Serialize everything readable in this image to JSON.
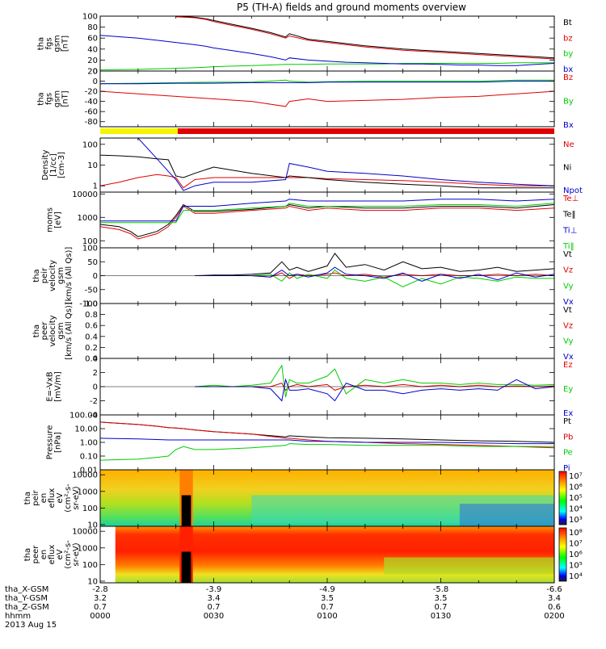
{
  "title": "P5 (TH-A) fields and ground moments overview",
  "footer": {
    "rows": [
      {
        "label": "tha_X-GSM",
        "values": [
          "-2.8",
          "-3.9",
          "-4.9",
          "-5.8",
          "-6.6"
        ]
      },
      {
        "label": "tha_Y-GSM",
        "values": [
          "3.2",
          "3.4",
          "3.5",
          "3.5",
          "3.4"
        ]
      },
      {
        "label": "tha_Z-GSM",
        "values": [
          "0.7",
          "0.7",
          "0.7",
          "0.7",
          "0.6"
        ]
      },
      {
        "label": "hhmm",
        "values": [
          "0000",
          "0030",
          "0100",
          "0130",
          "0200"
        ]
      }
    ],
    "date": "2013 Aug 15"
  },
  "colors": {
    "black": "#000000",
    "red": "#e00000",
    "green": "#00cc00",
    "blue": "#0000cc",
    "yellow": "#f5f500"
  },
  "chart_data": [
    {
      "type": "line",
      "ylabel_lines": [
        "tha",
        "fgs",
        "gsm",
        "[nT]"
      ],
      "ylim": [
        0,
        100
      ],
      "yticks": [
        "0",
        "20",
        "40",
        "60",
        "80",
        "100"
      ],
      "x": [
        0,
        10,
        15,
        20,
        25,
        28,
        30,
        35,
        40,
        45,
        49,
        50,
        55,
        60,
        65,
        70,
        75,
        80,
        85,
        90,
        95,
        100,
        105,
        110,
        115,
        120
      ],
      "series": [
        {
          "name": "Bt",
          "color": "#000000",
          "values": [
            null,
            null,
            null,
            100,
            98,
            95,
            92,
            85,
            78,
            70,
            62,
            68,
            58,
            54,
            50,
            46,
            43,
            40,
            38,
            36,
            34,
            32,
            30,
            28,
            26,
            24
          ]
        },
        {
          "name": "bz",
          "color": "#e00000",
          "values": [
            null,
            null,
            null,
            99,
            97,
            94,
            90,
            83,
            76,
            68,
            60,
            64,
            56,
            52,
            48,
            44,
            41,
            38,
            36,
            34,
            32,
            30,
            28,
            26,
            24,
            22
          ]
        },
        {
          "name": "by",
          "color": "#00cc00",
          "values": [
            2,
            3,
            4,
            5,
            6,
            7,
            8,
            9,
            10,
            11,
            12,
            12,
            12,
            13,
            13,
            13,
            13,
            14,
            14,
            14,
            14,
            14,
            14,
            15,
            15,
            15
          ]
        },
        {
          "name": "bx",
          "color": "#0000cc",
          "values": [
            65,
            60,
            56,
            52,
            48,
            45,
            42,
            37,
            32,
            26,
            20,
            24,
            20,
            18,
            16,
            15,
            14,
            13,
            13,
            12,
            11,
            11,
            10,
            10,
            12,
            14
          ]
        }
      ]
    },
    {
      "type": "line",
      "ylabel_lines": [
        "tha",
        "fgs",
        "gsm",
        "[nT]"
      ],
      "ylim": [
        -90,
        20
      ],
      "yticks": [
        "-80",
        "-60",
        "-40",
        "-20",
        "0",
        "20"
      ],
      "x": [
        0,
        10,
        20,
        30,
        40,
        49,
        50,
        55,
        60,
        70,
        80,
        90,
        100,
        110,
        120
      ],
      "series": [
        {
          "name": "Bz",
          "color": "#e00000",
          "values": [
            -20,
            -25,
            -30,
            -35,
            -40,
            -50,
            -40,
            -35,
            -40,
            -38,
            -36,
            -32,
            -30,
            -25,
            -20
          ]
        },
        {
          "name": "By",
          "color": "#00cc00",
          "values": [
            -5,
            -4,
            -3,
            -2,
            -2,
            2,
            0,
            -2,
            -1,
            0,
            0,
            0,
            0,
            2,
            2
          ]
        },
        {
          "name": "Bx",
          "color": "#0000cc",
          "values": [
            -5,
            -5,
            -4,
            -4,
            -3,
            -3,
            -3,
            -3,
            -2,
            -2,
            -2,
            -2,
            -2,
            0,
            0
          ]
        }
      ]
    },
    {
      "type": "line",
      "ylabel_lines": [
        "Density",
        "[1/cc]",
        "[cm-3]"
      ],
      "yscale": "log",
      "ylim": [
        0.5,
        200
      ],
      "yticks": [
        "1",
        "10",
        "100"
      ],
      "x": [
        0,
        5,
        10,
        15,
        18,
        20,
        22,
        25,
        30,
        40,
        49,
        50,
        55,
        60,
        70,
        80,
        90,
        100,
        110,
        120
      ],
      "series": [
        {
          "name": "Ne",
          "color": "#e00000",
          "values": [
            1,
            1.5,
            2.5,
            3.5,
            3,
            2.5,
            0.8,
            2,
            2.5,
            2.5,
            2.5,
            2.5,
            2.5,
            2.2,
            2,
            1.8,
            1.5,
            1.2,
            1,
            1
          ]
        },
        {
          "name": "Ni",
          "color": "#000000",
          "values": [
            30,
            28,
            25,
            20,
            18,
            3,
            2.5,
            4,
            8,
            4,
            2.5,
            3,
            2.5,
            2,
            1.5,
            1.2,
            1,
            0.8,
            0.8,
            0.8
          ]
        },
        {
          "name": "Npot",
          "color": "#0000cc",
          "values": [
            null,
            null,
            200,
            20,
            5,
            2,
            0.6,
            1,
            1.5,
            1.5,
            2,
            12,
            8,
            5,
            4,
            3,
            2,
            1.5,
            1.2,
            1
          ]
        }
      ]
    },
    {
      "type": "line",
      "ylabel_lines": [
        "moms",
        "[eV]"
      ],
      "yscale": "log",
      "ylim": [
        50,
        12000
      ],
      "yticks": [
        "100",
        "1000",
        "10000"
      ],
      "x": [
        0,
        5,
        8,
        10,
        15,
        18,
        20,
        22,
        25,
        30,
        40,
        49,
        50,
        55,
        60,
        70,
        80,
        90,
        100,
        110,
        120
      ],
      "series": [
        {
          "name": "Te⊥",
          "color": "#e00000",
          "values": [
            400,
            300,
            200,
            120,
            200,
            400,
            1000,
            3000,
            1500,
            1500,
            2000,
            2500,
            3000,
            2000,
            2500,
            2000,
            2000,
            2500,
            2500,
            2000,
            2500
          ]
        },
        {
          "name": "Te‖",
          "color": "#000000",
          "values": [
            500,
            400,
            250,
            150,
            250,
            500,
            1200,
            3500,
            1800,
            1800,
            2200,
            3000,
            3500,
            2500,
            3000,
            2500,
            2500,
            3000,
            3000,
            2500,
            3500
          ]
        },
        {
          "name": "Ti⊥",
          "color": "#0000cc",
          "values": [
            700,
            700,
            700,
            700,
            700,
            700,
            700,
            3000,
            3000,
            3000,
            4000,
            5000,
            6000,
            5000,
            5000,
            5000,
            5000,
            6000,
            6000,
            5000,
            6000
          ]
        },
        {
          "name": "Ti‖",
          "color": "#00cc00",
          "values": [
            600,
            600,
            600,
            600,
            600,
            600,
            600,
            2000,
            2000,
            2000,
            2500,
            3000,
            4000,
            3000,
            3000,
            3000,
            3000,
            3500,
            3500,
            3000,
            4000
          ]
        }
      ]
    },
    {
      "type": "line",
      "ylabel_lines": [
        "tha",
        "peir",
        "velocity",
        "gsm",
        "[km/s (All Qs)]"
      ],
      "ylim": [
        -100,
        100
      ],
      "yticks": [
        "-100",
        "-50",
        "0",
        "50",
        "100"
      ],
      "x": [
        25,
        30,
        35,
        40,
        45,
        48,
        50,
        52,
        55,
        60,
        62,
        65,
        70,
        75,
        80,
        85,
        90,
        95,
        100,
        105,
        110,
        115,
        120
      ],
      "series": [
        {
          "name": "Vt",
          "color": "#000000",
          "values": [
            0,
            2,
            2,
            5,
            10,
            50,
            20,
            30,
            15,
            35,
            80,
            30,
            40,
            20,
            50,
            25,
            30,
            15,
            20,
            30,
            15,
            20,
            25
          ]
        },
        {
          "name": "Vz",
          "color": "#e00000",
          "values": [
            0,
            0,
            0,
            0,
            -5,
            10,
            -10,
            5,
            0,
            5,
            10,
            0,
            5,
            -5,
            5,
            0,
            5,
            0,
            0,
            5,
            0,
            5,
            0
          ]
        },
        {
          "name": "Vy",
          "color": "#00cc00",
          "values": [
            0,
            0,
            0,
            0,
            5,
            -20,
            10,
            -10,
            5,
            -10,
            20,
            -10,
            -20,
            -5,
            -40,
            -10,
            -30,
            -5,
            -10,
            -20,
            -5,
            -10,
            -10
          ]
        },
        {
          "name": "Vx",
          "color": "#0000cc",
          "values": [
            0,
            0,
            0,
            0,
            -5,
            20,
            0,
            5,
            -5,
            10,
            30,
            5,
            0,
            -10,
            10,
            -20,
            5,
            -10,
            5,
            -15,
            10,
            -5,
            5
          ]
        }
      ]
    },
    {
      "type": "line",
      "ylabel_lines": [
        "tha",
        "peer",
        "velocity",
        "gsm",
        "[km/s (All Qs)]"
      ],
      "ylim": [
        0,
        1
      ],
      "yticks": [
        "0.0",
        "0.2",
        "0.4",
        "0.6",
        "0.8",
        "1.0"
      ],
      "x": [],
      "series": [
        {
          "name": "Vt",
          "color": "#000000",
          "values": []
        },
        {
          "name": "Vz",
          "color": "#e00000",
          "values": []
        },
        {
          "name": "Vy",
          "color": "#00cc00",
          "values": []
        },
        {
          "name": "Vx",
          "color": "#0000cc",
          "values": []
        }
      ]
    },
    {
      "type": "line",
      "ylabel_lines": [
        "E=-VxB",
        "[mV/m]"
      ],
      "ylim": [
        -4,
        4
      ],
      "yticks": [
        "-4",
        "-2",
        "0",
        "2",
        "4"
      ],
      "x": [
        25,
        30,
        35,
        40,
        45,
        48,
        49,
        50,
        52,
        55,
        60,
        62,
        65,
        70,
        75,
        80,
        85,
        90,
        95,
        100,
        105,
        110,
        115,
        120
      ],
      "series": [
        {
          "name": "Ez",
          "color": "#e00000",
          "values": [
            0,
            0,
            0,
            0,
            0,
            0.5,
            -0.5,
            0,
            0.3,
            0,
            0.3,
            -0.5,
            0,
            0.2,
            0,
            0.3,
            0,
            0.2,
            0,
            0.2,
            0,
            0.1,
            0,
            0.1
          ]
        },
        {
          "name": "Ey",
          "color": "#00cc00",
          "values": [
            0,
            0.2,
            0,
            0.2,
            0.5,
            3,
            -1.5,
            1,
            0.5,
            0.5,
            1.5,
            2.5,
            -1,
            1,
            0.5,
            1,
            0.5,
            0.5,
            0.3,
            0.5,
            0.3,
            0.3,
            0.2,
            0.3
          ]
        },
        {
          "name": "Ex",
          "color": "#0000cc",
          "values": [
            0,
            0,
            0,
            0,
            -0.3,
            -2,
            1,
            -0.5,
            -0.5,
            -0.3,
            -1,
            -2,
            0.5,
            -0.5,
            -0.5,
            -1,
            -0.5,
            -0.3,
            -0.5,
            -0.3,
            -0.5,
            1,
            -0.3,
            0
          ]
        }
      ]
    },
    {
      "type": "line",
      "ylabel_lines": [
        "Pressure",
        "[nPa]"
      ],
      "yscale": "log",
      "ylim": [
        0.01,
        100
      ],
      "yticks": [
        "0.01",
        "0.10",
        "1.00",
        "10.00",
        "100.00"
      ],
      "x": [
        0,
        10,
        15,
        18,
        20,
        22,
        25,
        30,
        40,
        49,
        50,
        55,
        60,
        70,
        80,
        90,
        100,
        110,
        120
      ],
      "series": [
        {
          "name": "Pt",
          "color": "#000000",
          "values": [
            30,
            20,
            15,
            12,
            11,
            10,
            8,
            6,
            4,
            2.5,
            3,
            2.5,
            2.2,
            2,
            1.8,
            1.5,
            1.3,
            1.2,
            1
          ]
        },
        {
          "name": "Pb",
          "color": "#e00000",
          "values": [
            30,
            20,
            15,
            12,
            11,
            10,
            8,
            6,
            4,
            2,
            2,
            1.5,
            1.2,
            1,
            0.8,
            0.7,
            0.6,
            0.5,
            0.4
          ]
        },
        {
          "name": "Pe",
          "color": "#00cc00",
          "values": [
            0.05,
            0.06,
            0.08,
            0.1,
            0.3,
            0.5,
            0.3,
            0.3,
            0.4,
            0.6,
            0.8,
            0.7,
            0.7,
            0.6,
            0.6,
            0.6,
            0.5,
            0.5,
            0.5
          ]
        },
        {
          "name": "Pi",
          "color": "#0000cc",
          "values": [
            2,
            1.8,
            1.6,
            1.5,
            1.5,
            1.5,
            1.5,
            1.5,
            1.5,
            1.5,
            1.5,
            1.2,
            1.2,
            1,
            1,
            1,
            0.9,
            0.8,
            0.8
          ]
        }
      ]
    },
    {
      "type": "heatmap",
      "ylabel_lines": [
        "tha",
        "peir",
        "en",
        "eflux",
        "eV",
        "(cm²-s-",
        "sr-eV)"
      ],
      "yscale": "log",
      "yticks": [
        "10",
        "100",
        "1000",
        "10000"
      ],
      "colorbar_ticks": [
        "10³",
        "10⁴",
        "10⁵",
        "10⁶",
        "10⁷"
      ]
    },
    {
      "type": "heatmap",
      "ylabel_lines": [
        "tha",
        "peer",
        "en",
        "eflux",
        "eV",
        "(cm²-s-",
        "sr-eV)"
      ],
      "yscale": "log",
      "yticks": [
        "10",
        "100",
        "1000",
        "10000"
      ],
      "colorbar_ticks": [
        "10⁴",
        "10⁵",
        "10⁶",
        "10⁷",
        "10⁸"
      ]
    }
  ]
}
